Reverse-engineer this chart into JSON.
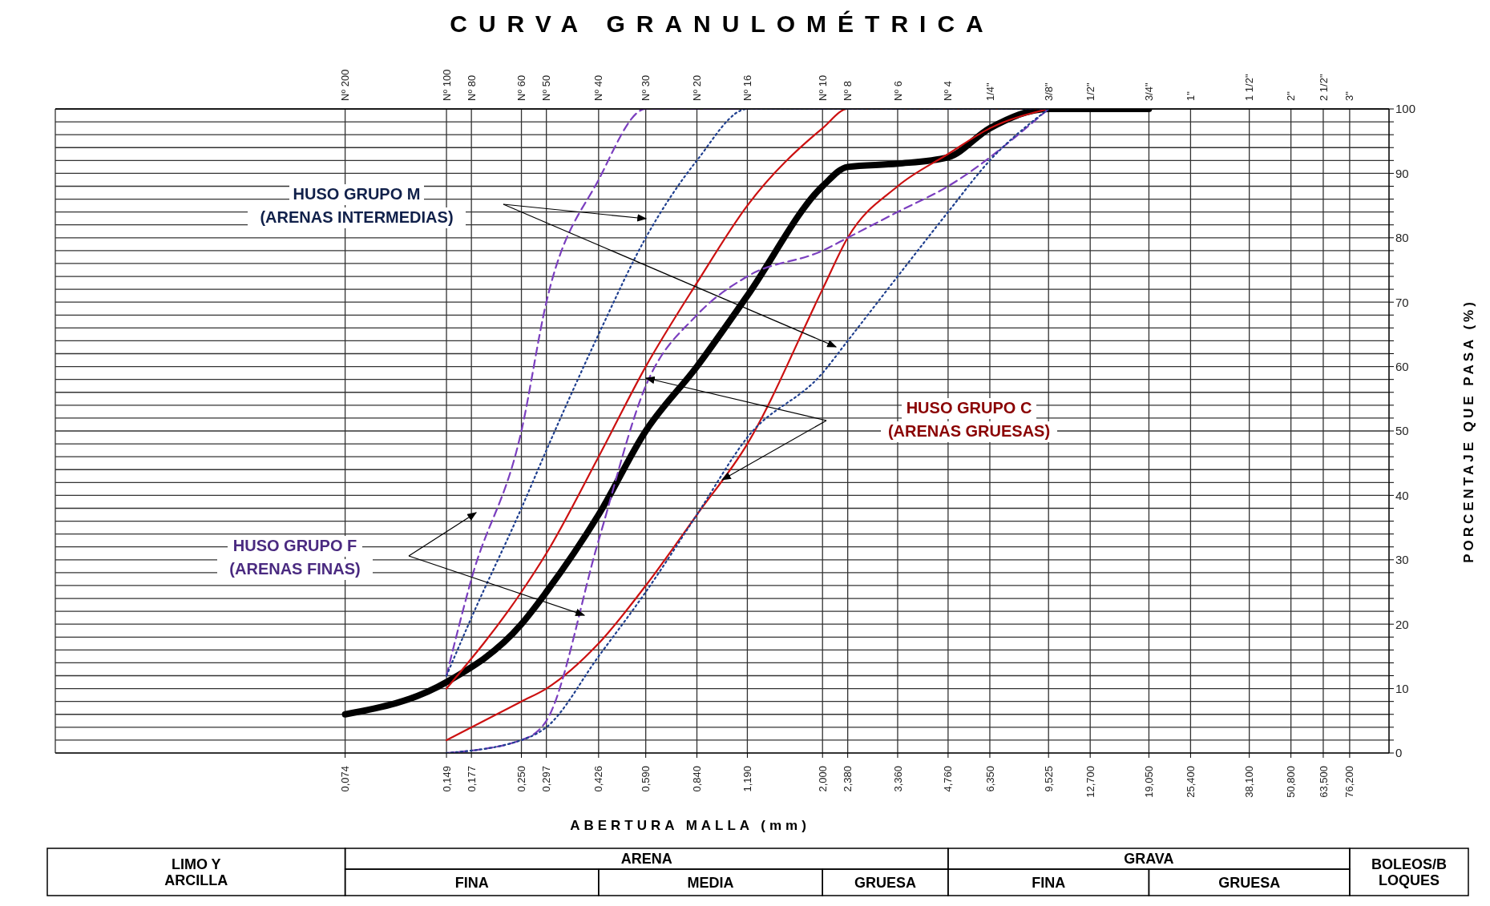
{
  "chart_data": {
    "type": "line",
    "title": "CURVA GRANULOMÉTRICA",
    "xlabel": "ABERTURA MALLA (mm)",
    "ylabel": "PORCENTAJE QUE PASA (%)",
    "log": "x",
    "grid": true,
    "xlim": [
      0.01,
      100
    ],
    "xticks": [
      {
        "value": 0.074,
        "label": "0,074"
      },
      {
        "value": 0.149,
        "label": "0,149"
      },
      {
        "value": 0.177,
        "label": "0,177"
      },
      {
        "value": 0.25,
        "label": "0,250"
      },
      {
        "value": 0.297,
        "label": "0,297"
      },
      {
        "value": 0.426,
        "label": "0,426"
      },
      {
        "value": 0.59,
        "label": "0,590"
      },
      {
        "value": 0.84,
        "label": "0,840"
      },
      {
        "value": 1.19,
        "label": "1,190"
      },
      {
        "value": 2,
        "label": "2,000"
      },
      {
        "value": 2.38,
        "label": "2,380"
      },
      {
        "value": 3.36,
        "label": "3,360"
      },
      {
        "value": 4.76,
        "label": "4,760"
      },
      {
        "value": 6.35,
        "label": "6,350"
      },
      {
        "value": 9.525,
        "label": "9,525"
      },
      {
        "value": 12.7,
        "label": "12,700"
      },
      {
        "value": 19.05,
        "label": "19,050"
      },
      {
        "value": 25.4,
        "label": "25,400"
      },
      {
        "value": 38.1,
        "label": "38,100"
      },
      {
        "value": 50.8,
        "label": "50,800"
      },
      {
        "value": 63.5,
        "label": "63,500"
      },
      {
        "value": 76.2,
        "label": "76,200"
      }
    ],
    "ylim": [
      0,
      100
    ],
    "yticks": [
      0,
      {
        "value": 2,
        "label": null
      },
      {
        "value": 4,
        "label": null
      },
      {
        "value": 6,
        "label": null
      },
      {
        "value": 8,
        "label": null
      },
      10,
      {
        "value": 12,
        "label": null
      },
      {
        "value": 14,
        "label": null
      },
      {
        "value": 16,
        "label": null
      },
      {
        "value": 18,
        "label": null
      },
      20,
      {
        "value": 22,
        "label": null
      },
      {
        "value": 24,
        "label": null
      },
      {
        "value": 26,
        "label": null
      },
      {
        "value": 28,
        "label": null
      },
      30,
      {
        "value": 32,
        "label": null
      },
      {
        "value": 34,
        "label": null
      },
      {
        "value": 36,
        "label": null
      },
      {
        "value": 38,
        "label": null
      },
      40,
      {
        "value": 42,
        "label": null
      },
      {
        "value": 44,
        "label": null
      },
      {
        "value": 46,
        "label": null
      },
      {
        "value": 48,
        "label": null
      },
      50,
      {
        "value": 52,
        "label": null
      },
      {
        "value": 54,
        "label": null
      },
      {
        "value": 56,
        "label": null
      },
      {
        "value": 58,
        "label": null
      },
      60,
      {
        "value": 62,
        "label": null
      },
      {
        "value": 64,
        "label": null
      },
      {
        "value": 66,
        "label": null
      },
      {
        "value": 68,
        "label": null
      },
      70,
      {
        "value": 72,
        "label": null
      },
      {
        "value": 74,
        "label": null
      },
      {
        "value": 76,
        "label": null
      },
      {
        "value": 78,
        "label": null
      },
      80,
      {
        "value": 82,
        "label": null
      },
      {
        "value": 84,
        "label": null
      },
      {
        "value": 86,
        "label": null
      },
      {
        "value": 88,
        "label": null
      },
      90,
      {
        "value": 92,
        "label": null
      },
      {
        "value": 94,
        "label": null
      },
      {
        "value": 96,
        "label": null
      },
      {
        "value": 98,
        "label": null
      },
      100
    ],
    "series": [
      {
        "color": "#000000",
        "line_style": "solid",
        "x": [
          0.074,
          0.149,
          0.25,
          0.297,
          0.426,
          0.59,
          0.84,
          1.19,
          2,
          2.38,
          3.36,
          4.76,
          6.35,
          9.525,
          19.05
        ],
        "values": [
          6,
          11,
          20,
          25,
          37,
          50,
          60,
          71,
          88,
          91,
          91.5,
          92.5,
          97,
          100,
          100
        ]
      },
      {
        "color": "#cc1111",
        "line_style": "solid",
        "x": [
          0.149,
          0.25,
          0.297,
          0.426,
          0.59,
          0.84,
          1.19,
          2,
          2.38,
          9.525
        ],
        "values": [
          10,
          25,
          31,
          46,
          60,
          73,
          85,
          97,
          100,
          100
        ]
      },
      {
        "color": "#cc1111",
        "line_style": "solid",
        "x": [
          0.149,
          0.25,
          0.297,
          0.426,
          0.59,
          0.84,
          1.19,
          2,
          2.38,
          3.36,
          4.76,
          6.35,
          9.525
        ],
        "values": [
          2,
          8,
          10,
          17,
          26,
          37,
          48,
          72,
          80,
          88,
          93,
          97,
          100
        ]
      },
      {
        "color": "#7b3fbf",
        "line_style": "dashed",
        "x": [
          0.149,
          0.177,
          0.25,
          0.297,
          0.426,
          0.59,
          9.525
        ],
        "values": [
          12,
          27,
          50,
          70,
          89,
          100,
          100
        ]
      },
      {
        "color": "#7b3fbf",
        "line_style": "dashed",
        "x": [
          0.149,
          0.25,
          0.297,
          0.426,
          0.59,
          0.84,
          1.19,
          2,
          2.38,
          3.36,
          4.76,
          9.525
        ],
        "values": [
          0,
          2,
          5,
          33,
          57,
          68,
          74,
          78,
          80,
          84,
          88,
          100
        ]
      },
      {
        "color": "#1f3f8f",
        "line_style": "dotted",
        "x": [
          0.149,
          0.177,
          0.25,
          0.297,
          0.426,
          0.59,
          0.84,
          1.19,
          9.525
        ],
        "values": [
          12,
          21,
          38,
          47,
          65,
          80,
          92,
          100,
          100
        ]
      },
      {
        "color": "#1f3f8f",
        "line_style": "dotted",
        "x": [
          0.149,
          0.25,
          0.297,
          0.426,
          0.59,
          0.84,
          1.19,
          2,
          2.38,
          3.36,
          4.76,
          6.35,
          9.525
        ],
        "values": [
          0,
          2,
          4,
          15,
          25,
          37,
          49,
          59,
          64,
          74,
          84,
          92,
          100
        ]
      }
    ],
    "annotations": [
      "HUSO GRUPO M\n(ARENAS INTERMEDIAS)",
      "HUSO GRUPO C\n(ARENAS GRUESAS)",
      "HUSO GRUPO F\n(ARENAS FINAS)",
      "LIMO Y\nARCILLA",
      "ARENA",
      "FINA",
      "MEDIA",
      "GRUESA",
      "GRAVA",
      "FINA",
      "GRUESA",
      "BOLEOS/B\nLOQUES",
      "Nº 200",
      "Nº 100",
      "Nº 80",
      "Nº 60",
      "Nº 50",
      "Nº 40",
      "Nº 30",
      "Nº 20",
      "Nº 16",
      "Nº 10",
      "Nº 8",
      "Nº 6",
      "Nº 4",
      "1/4\"",
      "3/8\"",
      "1/2\"",
      "3/4\"",
      "1\"",
      "1 1/2\"",
      "2\"",
      "2 1/2\"",
      "3\""
    ]
  }
}
